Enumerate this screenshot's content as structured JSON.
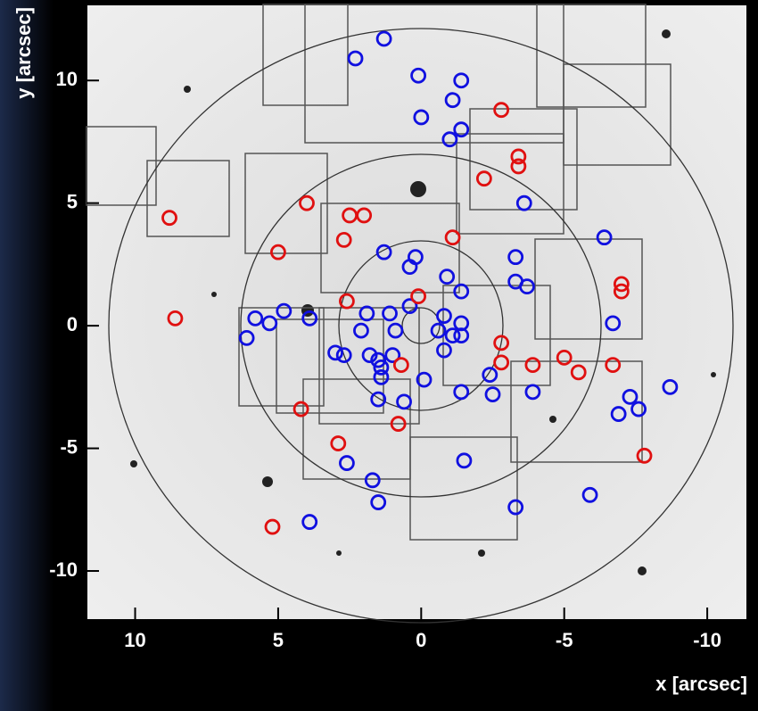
{
  "chart_data": {
    "type": "scatter",
    "x_label": "x [arcsec]",
    "y_label": "y [arcsec]",
    "xlim": [
      11.7,
      -11.4
    ],
    "ylim": [
      -12,
      13.1
    ],
    "xticks": [
      10,
      5,
      0,
      -5,
      -10
    ],
    "yticks": [
      -10,
      -5,
      0,
      5,
      10
    ],
    "series": [
      {
        "color": "#1010e0",
        "x": [
          1.3,
          2.3,
          0.1,
          -1.4,
          -1.1,
          0,
          -1.4,
          -1.0,
          -3.6,
          1.3,
          0.2,
          0.4,
          -0.9,
          -1.4,
          -3.3,
          -3.3,
          -3.7,
          -6.4,
          -6.7,
          5.8,
          5.3,
          4.8,
          3.9,
          6.1,
          1.9,
          1.1,
          0.9,
          0.4,
          -0.8,
          -1.4,
          -0.6,
          -1.1,
          -1.4,
          2.1,
          3.0,
          2.7,
          1.8,
          1.5,
          1.4,
          1.0,
          1.4,
          0.6,
          -0.1,
          -0.8,
          -1.4,
          -2.4,
          -2.5,
          -3.9,
          1.5,
          2.6,
          1.7,
          1.5,
          3.9,
          -1.5,
          -3.3,
          -5.9,
          -6.9,
          -7.3,
          -7.6,
          -8.7
        ],
        "y": [
          11.7,
          10.9,
          10.2,
          10.0,
          9.2,
          8.5,
          8.0,
          7.6,
          5.0,
          3.0,
          2.8,
          2.4,
          2.0,
          1.4,
          2.8,
          1.8,
          1.6,
          3.6,
          0.1,
          0.3,
          0.1,
          0.6,
          0.3,
          -0.5,
          0.5,
          0.5,
          -0.2,
          0.8,
          0.4,
          0.1,
          -0.2,
          -0.4,
          -0.4,
          -0.2,
          -1.1,
          -1.2,
          -1.2,
          -1.4,
          -1.7,
          -1.2,
          -2.1,
          -3.1,
          -2.2,
          -1.0,
          -2.7,
          -2.0,
          -2.8,
          -2.7,
          -3.0,
          -5.6,
          -6.3,
          -7.2,
          -8.0,
          -5.5,
          -7.4,
          -6.9,
          -3.6,
          -2.9,
          -3.4,
          -2.5
        ]
      },
      {
        "color": "#e01010",
        "x": [
          -2.8,
          -3.4,
          -3.4,
          -2.2,
          4.0,
          8.8,
          2.5,
          2.0,
          2.7,
          5.0,
          -1.1,
          -7.0,
          -7.0,
          2.6,
          0.1,
          8.6,
          -2.8,
          -2.8,
          -3.9,
          -5.0,
          -5.5,
          -6.7,
          0.7,
          0.8,
          2.9,
          4.2,
          5.2,
          -7.8
        ],
        "y": [
          8.8,
          6.9,
          6.5,
          6.0,
          5.0,
          4.4,
          4.5,
          4.5,
          3.5,
          3.0,
          3.6,
          1.7,
          1.4,
          1.0,
          1.2,
          0.3,
          -0.7,
          -1.5,
          -1.6,
          -1.3,
          -1.9,
          -1.6,
          -1.6,
          -4.0,
          -4.8,
          -3.4,
          -8.2,
          -5.3
        ]
      }
    ]
  }
}
